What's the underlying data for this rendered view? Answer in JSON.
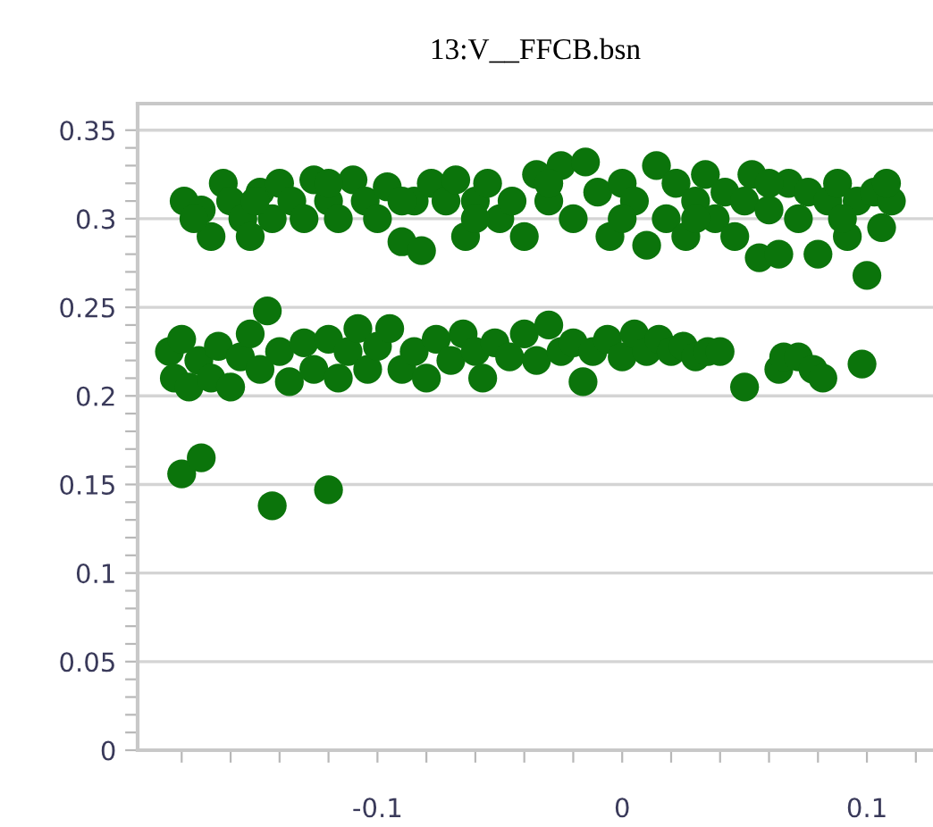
{
  "chart_data": {
    "type": "scatter",
    "title": "13:V__FFCB.bsn",
    "color": "#0b740b",
    "marker": "circle",
    "grid": "y",
    "x": [
      -0.179,
      -0.172,
      -0.168,
      -0.163,
      -0.16,
      -0.155,
      -0.152,
      -0.148,
      -0.143,
      -0.14,
      -0.135,
      -0.13,
      -0.126,
      -0.12,
      -0.116,
      -0.11,
      -0.105,
      -0.1,
      -0.096,
      -0.09,
      -0.085,
      -0.082,
      -0.078,
      -0.072,
      -0.068,
      -0.064,
      -0.06,
      -0.055,
      -0.05,
      -0.045,
      -0.04,
      -0.035,
      -0.03,
      -0.025,
      -0.02,
      -0.015,
      -0.01,
      -0.005,
      0,
      0.005,
      0.01,
      0.014,
      0.018,
      0.022,
      0.026,
      0.03,
      0.034,
      0.038,
      0.042,
      0.046,
      0.05,
      0.053,
      0.056,
      0.06,
      0.064,
      0.068,
      0.072,
      0.076,
      0.08,
      0.084,
      0.088,
      0.092,
      0.096,
      0.1,
      0.103,
      0.106,
      0.11,
      0.108,
      -0.175,
      -0.15,
      -0.12,
      -0.09,
      -0.06,
      -0.03,
      0,
      0.03,
      0.06,
      0.09,
      -0.185,
      -0.183,
      -0.18,
      -0.177,
      -0.173,
      -0.168,
      -0.165,
      -0.16,
      -0.156,
      -0.152,
      -0.148,
      -0.145,
      -0.14,
      -0.136,
      -0.13,
      -0.126,
      -0.12,
      -0.116,
      -0.112,
      -0.108,
      -0.104,
      -0.1,
      -0.095,
      -0.09,
      -0.085,
      -0.08,
      -0.076,
      -0.07,
      -0.065,
      -0.06,
      -0.057,
      -0.052,
      -0.046,
      -0.04,
      -0.035,
      -0.03,
      -0.025,
      -0.02,
      -0.016,
      -0.012,
      -0.006,
      0,
      0.005,
      0.01,
      0.015,
      0.02,
      0.025,
      0.03,
      0.035,
      0.04,
      0.05,
      0.064,
      0.066,
      0.072,
      0.078,
      0.082,
      0.098,
      -0.18,
      -0.172,
      -0.143,
      -0.12
    ],
    "values": [
      0.31,
      0.305,
      0.29,
      0.32,
      0.31,
      0.3,
      0.29,
      0.315,
      0.3,
      0.32,
      0.31,
      0.3,
      0.322,
      0.31,
      0.3,
      0.322,
      0.31,
      0.3,
      0.318,
      0.287,
      0.31,
      0.282,
      0.32,
      0.31,
      0.322,
      0.29,
      0.31,
      0.32,
      0.3,
      0.31,
      0.29,
      0.325,
      0.31,
      0.33,
      0.3,
      0.332,
      0.315,
      0.29,
      0.32,
      0.31,
      0.285,
      0.33,
      0.3,
      0.32,
      0.29,
      0.31,
      0.325,
      0.3,
      0.315,
      0.29,
      0.31,
      0.325,
      0.278,
      0.305,
      0.28,
      0.32,
      0.3,
      0.315,
      0.28,
      0.31,
      0.32,
      0.29,
      0.31,
      0.268,
      0.315,
      0.295,
      0.31,
      0.32,
      0.3,
      0.31,
      0.32,
      0.31,
      0.3,
      0.32,
      0.3,
      0.3,
      0.32,
      0.3,
      0.225,
      0.21,
      0.232,
      0.205,
      0.22,
      0.21,
      0.228,
      0.205,
      0.222,
      0.235,
      0.215,
      0.248,
      0.225,
      0.208,
      0.23,
      0.215,
      0.232,
      0.21,
      0.225,
      0.238,
      0.215,
      0.228,
      0.238,
      0.215,
      0.225,
      0.21,
      0.232,
      0.22,
      0.235,
      0.225,
      0.21,
      0.23,
      0.222,
      0.235,
      0.22,
      0.24,
      0.225,
      0.23,
      0.208,
      0.225,
      0.232,
      0.222,
      0.235,
      0.225,
      0.232,
      0.225,
      0.228,
      0.222,
      0.225,
      0.225,
      0.205,
      0.215,
      0.222,
      0.222,
      0.215,
      0.21,
      0.218,
      0.156,
      0.165,
      0.138,
      0.147
    ],
    "xlim": [
      -0.198,
      0.127
    ],
    "xticks": [
      {
        "value": -0.18,
        "label": null
      },
      {
        "value": -0.16,
        "label": null
      },
      {
        "value": -0.14,
        "label": null
      },
      {
        "value": -0.12,
        "label": null
      },
      -0.1,
      {
        "value": -0.08,
        "label": null
      },
      {
        "value": -0.06,
        "label": null
      },
      {
        "value": -0.04,
        "label": null
      },
      {
        "value": -0.02,
        "label": null
      },
      0,
      {
        "value": 0.02,
        "label": null
      },
      {
        "value": 0.04,
        "label": null
      },
      {
        "value": 0.06,
        "label": null
      },
      {
        "value": 0.08,
        "label": null
      },
      0.1,
      {
        "value": 0.12,
        "label": null
      }
    ],
    "ylim": [
      0,
      0.365
    ],
    "yticks": [
      0,
      {
        "value": 0.01,
        "label": null
      },
      {
        "value": 0.02,
        "label": null
      },
      {
        "value": 0.03,
        "label": null
      },
      {
        "value": 0.04,
        "label": null
      },
      0.05,
      {
        "value": 0.06,
        "label": null
      },
      {
        "value": 0.07,
        "label": null
      },
      {
        "value": 0.08,
        "label": null
      },
      {
        "value": 0.09,
        "label": null
      },
      0.1,
      {
        "value": 0.11,
        "label": null
      },
      {
        "value": 0.12,
        "label": null
      },
      {
        "value": 0.13,
        "label": null
      },
      {
        "value": 0.14,
        "label": null
      },
      0.15,
      {
        "value": 0.16,
        "label": null
      },
      {
        "value": 0.17,
        "label": null
      },
      {
        "value": 0.18,
        "label": null
      },
      {
        "value": 0.19,
        "label": null
      },
      0.2,
      {
        "value": 0.21,
        "label": null
      },
      {
        "value": 0.22,
        "label": null
      },
      {
        "value": 0.23,
        "label": null
      },
      {
        "value": 0.24,
        "label": null
      },
      0.25,
      {
        "value": 0.26,
        "label": null
      },
      {
        "value": 0.27,
        "label": null
      },
      {
        "value": 0.28,
        "label": null
      },
      {
        "value": 0.29,
        "label": null
      },
      0.3,
      {
        "value": 0.31,
        "label": null
      },
      {
        "value": 0.32,
        "label": null
      },
      {
        "value": 0.33,
        "label": null
      },
      {
        "value": 0.34,
        "label": null
      },
      0.35
    ]
  }
}
